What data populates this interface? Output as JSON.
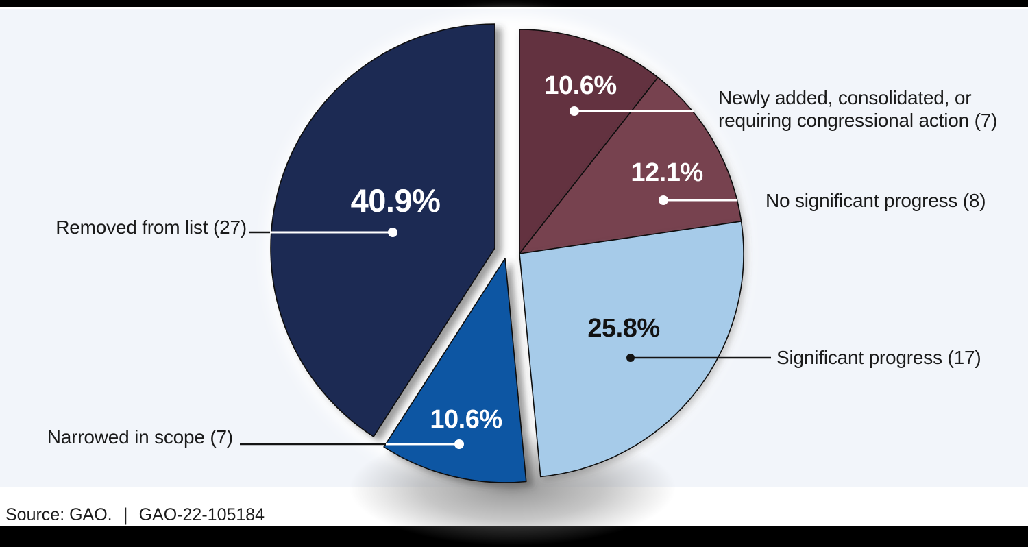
{
  "page": {
    "letterbox_color": "#000000",
    "base_white": "#ffffff",
    "panel_background": "#f2f5fa"
  },
  "footer": {
    "source_label": "Source: GAO.",
    "separator": "|",
    "report_id": "GAO-22-105184"
  },
  "chart_data": {
    "type": "pie",
    "legend_position": "callouts",
    "start_angle_deg": 0,
    "clockwise": true,
    "background_color": "#f2f5fa",
    "slices": [
      {
        "label": "Newly added, consolidated, or requiring congressional action",
        "count": 7,
        "pct": 10.6,
        "pct_label": "10.6%",
        "display_label_lines": [
          "Newly added, consolidated, or",
          "requiring congressional action (7)"
        ],
        "color": "#643041",
        "pct_text_color": "#ffffff",
        "leader_color": "#ffffff"
      },
      {
        "label": "No significant progress",
        "count": 8,
        "pct": 12.1,
        "pct_label": "12.1%",
        "display_label": "No significant progress (8)",
        "color": "#774250",
        "pct_text_color": "#ffffff",
        "leader_color": "#ffffff"
      },
      {
        "label": "Significant progress",
        "count": 17,
        "pct": 25.8,
        "pct_label": "25.8%",
        "display_label": "Significant progress (17)",
        "color": "#a6cbe9",
        "pct_text_color": "#121212",
        "leader_color": "#141414"
      },
      {
        "label": "Narrowed in scope",
        "count": 7,
        "pct": 10.6,
        "pct_label": "10.6%",
        "display_label": "Narrowed in scope (7)",
        "color": "#1157a3",
        "pct_text_color": "#ffffff",
        "leader_color": "#ffffff"
      },
      {
        "label": "Removed from list",
        "count": 27,
        "pct": 40.9,
        "pct_label": "40.9%",
        "display_label": "Removed from list (27)",
        "color": "#1f2a52",
        "pct_text_color": "#ffffff",
        "leader_color": "#ffffff"
      }
    ]
  }
}
